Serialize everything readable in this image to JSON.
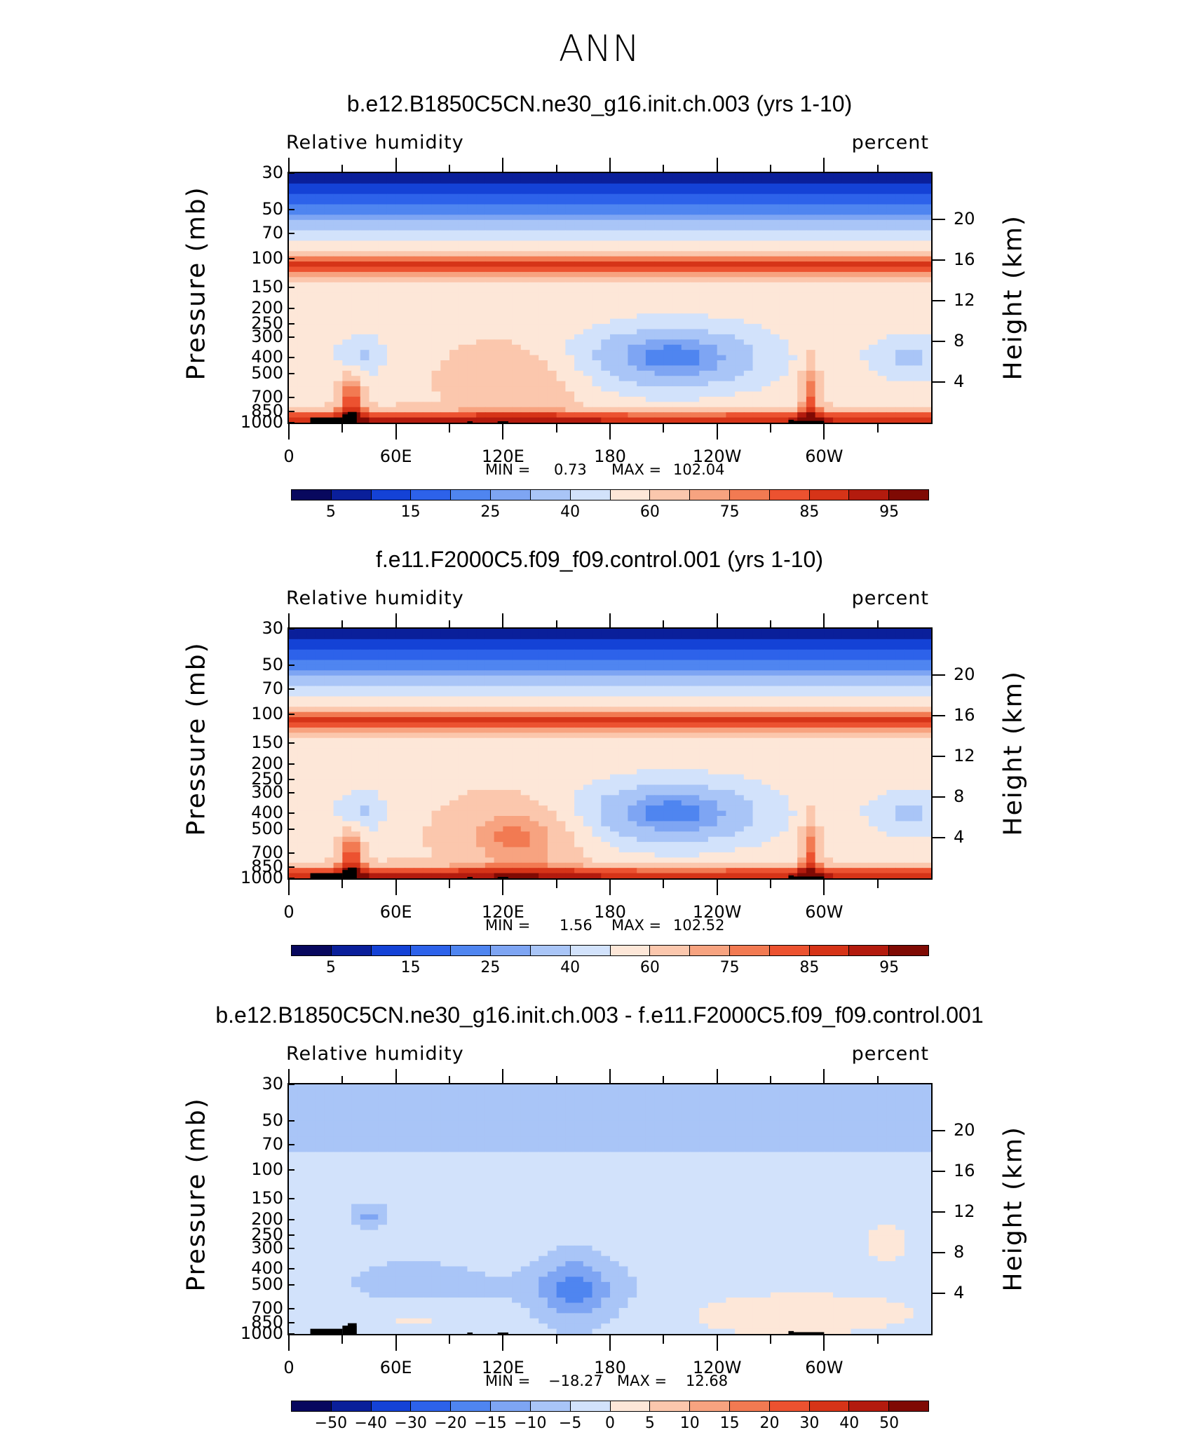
{
  "figure": {
    "title": "ANN"
  },
  "colors": {
    "rh_palette": [
      "#08085e",
      "#0a1f9a",
      "#1442d6",
      "#2d62ea",
      "#4f85f0",
      "#7ea5f3",
      "#a9c5f7",
      "#d2e2fb",
      "#fde7d8",
      "#fbc7ad",
      "#f7a380",
      "#f27a52",
      "#ec5230",
      "#d63418",
      "#b31b0e",
      "#7f0a04"
    ],
    "diff_palette": [
      "#08085e",
      "#0a1f9a",
      "#1442d6",
      "#2d62ea",
      "#4f85f0",
      "#7ea5f3",
      "#a9c5f7",
      "#d2e2fb",
      "#fde7d8",
      "#fbc7ad",
      "#f7a380",
      "#f27a52",
      "#ec5230",
      "#d63418",
      "#b31b0e",
      "#7f0a04"
    ],
    "land": "#000000"
  },
  "panels": [
    {
      "title": "b.e12.B1850C5CN.ne30_g16.init.ch.003 (yrs 1-10)",
      "variable": "Relative humidity",
      "units": "percent",
      "ylabel": "Pressure (mb)",
      "ylabel_right": "Height (km)",
      "min_label": "MIN =",
      "min_value": "0.73",
      "max_label": "MAX =",
      "max_value": "102.04",
      "colorbar_labels": [
        "5",
        "15",
        "25",
        "40",
        "60",
        "75",
        "85",
        "95"
      ]
    },
    {
      "title": "f.e11.F2000C5.f09_f09.control.001 (yrs 1-10)",
      "variable": "Relative humidity",
      "units": "percent",
      "ylabel": "Pressure (mb)",
      "ylabel_right": "Height (km)",
      "min_label": "MIN =",
      "min_value": "1.56",
      "max_label": "MAX =",
      "max_value": "102.52",
      "colorbar_labels": [
        "5",
        "15",
        "25",
        "40",
        "60",
        "75",
        "85",
        "95"
      ]
    },
    {
      "title": "b.e12.B1850C5CN.ne30_g16.init.ch.003 - f.e11.F2000C5.f09_f09.control.001",
      "variable": "Relative humidity",
      "units": "percent",
      "ylabel": "Pressure (mb)",
      "ylabel_right": "Height (km)",
      "min_label": "MIN =",
      "min_value": "−18.27",
      "max_label": "MAX =",
      "max_value": "12.68",
      "colorbar_labels": [
        "−50",
        "−40",
        "−30",
        "−20",
        "−15",
        "−10",
        "−5",
        "0",
        "5",
        "10",
        "15",
        "20",
        "30",
        "40",
        "50"
      ]
    }
  ],
  "chart_data": [
    {
      "type": "heatmap",
      "title": "b.e12.B1850C5CN.ne30_g16.init.ch.003 (yrs 1-10)",
      "variable": "Relative humidity",
      "units": "percent",
      "xlabel": "",
      "ylabel": "Pressure (mb)",
      "ylabel_right": "Height (km)",
      "x_ticks": [
        "0",
        "60E",
        "120E",
        "180",
        "120W",
        "60W"
      ],
      "x_tick_lon": [
        0,
        60,
        120,
        180,
        240,
        300
      ],
      "xlim": [
        0,
        360
      ],
      "y_ticks": [
        "30",
        "50",
        "70",
        "100",
        "150",
        "200",
        "250",
        "300",
        "400",
        "500",
        "700",
        "850",
        "1000"
      ],
      "y_tick_values": [
        30,
        50,
        70,
        100,
        150,
        200,
        250,
        300,
        400,
        500,
        700,
        850,
        1000
      ],
      "ylim": [
        30,
        1000
      ],
      "height_ticks": [
        "20",
        "16",
        "12",
        "8",
        "4"
      ],
      "height_tick_values": [
        20,
        16,
        12,
        8,
        4
      ],
      "levels": [
        5,
        10,
        15,
        20,
        25,
        30,
        40,
        50,
        60,
        70,
        75,
        80,
        85,
        90,
        95
      ],
      "min": 0.73,
      "max": 102.04
    },
    {
      "type": "heatmap",
      "title": "f.e11.F2000C5.f09_f09.control.001 (yrs 1-10)",
      "variable": "Relative humidity",
      "units": "percent",
      "xlabel": "",
      "ylabel": "Pressure (mb)",
      "ylabel_right": "Height (km)",
      "x_ticks": [
        "0",
        "60E",
        "120E",
        "180",
        "120W",
        "60W"
      ],
      "x_tick_lon": [
        0,
        60,
        120,
        180,
        240,
        300
      ],
      "xlim": [
        0,
        360
      ],
      "y_ticks": [
        "30",
        "50",
        "70",
        "100",
        "150",
        "200",
        "250",
        "300",
        "400",
        "500",
        "700",
        "850",
        "1000"
      ],
      "y_tick_values": [
        30,
        50,
        70,
        100,
        150,
        200,
        250,
        300,
        400,
        500,
        700,
        850,
        1000
      ],
      "ylim": [
        30,
        1000
      ],
      "height_ticks": [
        "20",
        "16",
        "12",
        "8",
        "4"
      ],
      "height_tick_values": [
        20,
        16,
        12,
        8,
        4
      ],
      "levels": [
        5,
        10,
        15,
        20,
        25,
        30,
        40,
        50,
        60,
        70,
        75,
        80,
        85,
        90,
        95
      ],
      "min": 1.56,
      "max": 102.52
    },
    {
      "type": "heatmap",
      "title": "b.e12.B1850C5CN.ne30_g16.init.ch.003 - f.e11.F2000C5.f09_f09.control.001",
      "variable": "Relative humidity",
      "units": "percent",
      "xlabel": "",
      "ylabel": "Pressure (mb)",
      "ylabel_right": "Height (km)",
      "x_ticks": [
        "0",
        "60E",
        "120E",
        "180",
        "120W",
        "60W"
      ],
      "x_tick_lon": [
        0,
        60,
        120,
        180,
        240,
        300
      ],
      "xlim": [
        0,
        360
      ],
      "y_ticks": [
        "30",
        "50",
        "70",
        "100",
        "150",
        "200",
        "250",
        "300",
        "400",
        "500",
        "700",
        "850",
        "1000"
      ],
      "y_tick_values": [
        30,
        50,
        70,
        100,
        150,
        200,
        250,
        300,
        400,
        500,
        700,
        850,
        1000
      ],
      "ylim": [
        30,
        1000
      ],
      "height_ticks": [
        "20",
        "16",
        "12",
        "8",
        "4"
      ],
      "height_tick_values": [
        20,
        16,
        12,
        8,
        4
      ],
      "levels": [
        -50,
        -40,
        -30,
        -20,
        -15,
        -10,
        -5,
        0,
        5,
        10,
        15,
        20,
        30,
        40,
        50
      ],
      "min": -18.27,
      "max": 12.68
    }
  ]
}
